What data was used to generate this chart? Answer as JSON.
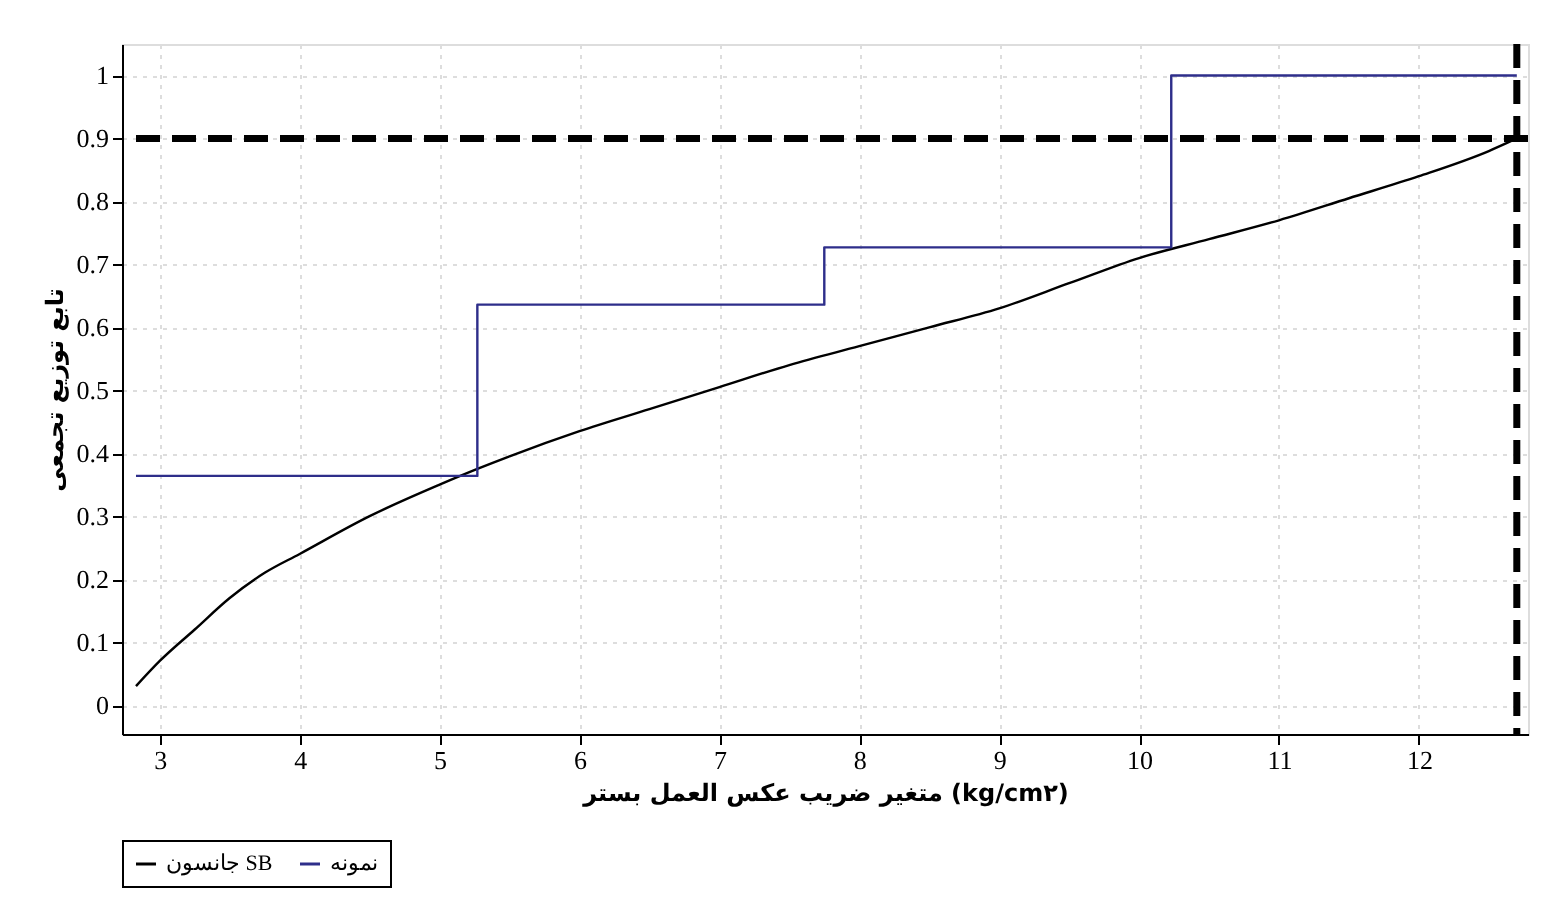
{
  "chart_data": {
    "type": "line",
    "xlabel": "متغیر ضریب عکس العمل بستر (kg/cm۲)",
    "ylabel": "تابع توزیع تجمعی",
    "series": [
      {
        "name": "جانسون SB",
        "color": "#000000",
        "x": [
          2.83,
          3.0,
          3.25,
          3.5,
          3.75,
          4.0,
          4.5,
          5.0,
          5.27,
          5.5,
          6.0,
          6.5,
          7.0,
          7.5,
          8.0,
          8.5,
          9.0,
          9.5,
          10.0,
          10.5,
          11.0,
          11.5,
          12.0,
          12.5,
          12.7
        ],
        "values": [
          0.03,
          0.07,
          0.12,
          0.17,
          0.21,
          0.24,
          0.3,
          0.35,
          0.375,
          0.395,
          0.435,
          0.47,
          0.505,
          0.54,
          0.57,
          0.6,
          0.63,
          0.67,
          0.71,
          0.74,
          0.77,
          0.805,
          0.84,
          0.88,
          0.9
        ]
      },
      {
        "name": "نمونه",
        "type": "step",
        "color": "#2e2e8a",
        "x": [
          2.83,
          5.27,
          7.75,
          10.23,
          12.7
        ],
        "values": [
          0.364,
          0.636,
          0.727,
          1.0,
          1.0
        ]
      }
    ],
    "xlim": [
      2.73,
      12.78
    ],
    "xticks": [
      3,
      4,
      5,
      6,
      7,
      8,
      9,
      10,
      11,
      12
    ],
    "ylim": [
      -0.046,
      1.05
    ],
    "yticks": [
      0,
      0.1,
      0.2,
      0.3,
      0.4,
      0.5,
      0.6,
      0.7,
      0.8,
      0.9,
      1
    ],
    "ref_lines": [
      {
        "axis": "y",
        "value": 0.9,
        "color": "#000000",
        "line_style": "dashed"
      },
      {
        "axis": "x",
        "value": 12.7,
        "color": "#000000",
        "line_style": "dashed"
      }
    ],
    "grid": true,
    "legend": "bottom",
    "marker": "none",
    "line_style": "solid"
  }
}
